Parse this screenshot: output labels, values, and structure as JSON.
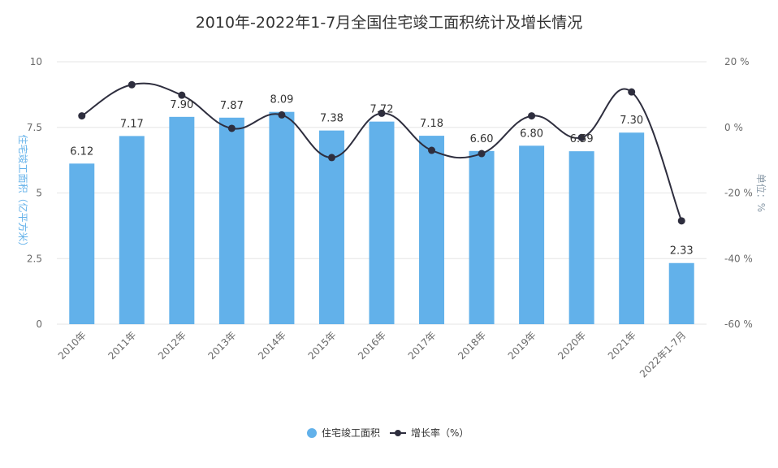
{
  "chart_data": {
    "type": "bar",
    "title": "2010年-2022年1-7月全国住宅竣工面积统计及增长情况",
    "categories": [
      "2010年",
      "2011年",
      "2012年",
      "2013年",
      "2014年",
      "2015年",
      "2016年",
      "2017年",
      "2018年",
      "2019年",
      "2020年",
      "2021年",
      "2022年1-7月"
    ],
    "series": [
      {
        "name": "住宅竣工面积",
        "type": "bar",
        "axis": "left",
        "values": [
          6.12,
          7.17,
          7.9,
          7.87,
          8.09,
          7.38,
          7.72,
          7.18,
          6.6,
          6.8,
          6.59,
          7.3,
          2.33
        ],
        "labels": [
          "6.12",
          "7.17",
          "7.90",
          "7.87",
          "8.09",
          "7.38",
          "7.72",
          "7.18",
          "6.60",
          "6.80",
          "6.59",
          "7.30",
          "2.33"
        ]
      },
      {
        "name": "增长率（%）",
        "type": "line",
        "axis": "right",
        "values": [
          3.5,
          13.0,
          9.8,
          -0.3,
          3.8,
          -9.2,
          4.3,
          -7.0,
          -8.0,
          3.5,
          -3.1,
          10.8,
          -28.5
        ]
      }
    ],
    "ylabel": "住宅竣工面积（亿平方米）",
    "y2label": "单位：%",
    "ylim": [
      0,
      10
    ],
    "y2lim": [
      -60,
      20
    ],
    "yticks": [
      "0",
      "2.5",
      "5",
      "7.5",
      "10"
    ],
    "y2ticks": [
      "-60 %",
      "-40 %",
      "-20 %",
      "0 %",
      "20 %"
    ],
    "grid": true,
    "legend_position": "bottom",
    "colors": {
      "bar": "#62b1ea",
      "line": "#2e2e3e",
      "marker": "#2e2e3e",
      "left_axis": "#62b1ea",
      "right_axis": "#8a9aa8",
      "grid": "#e6e6e6"
    }
  }
}
